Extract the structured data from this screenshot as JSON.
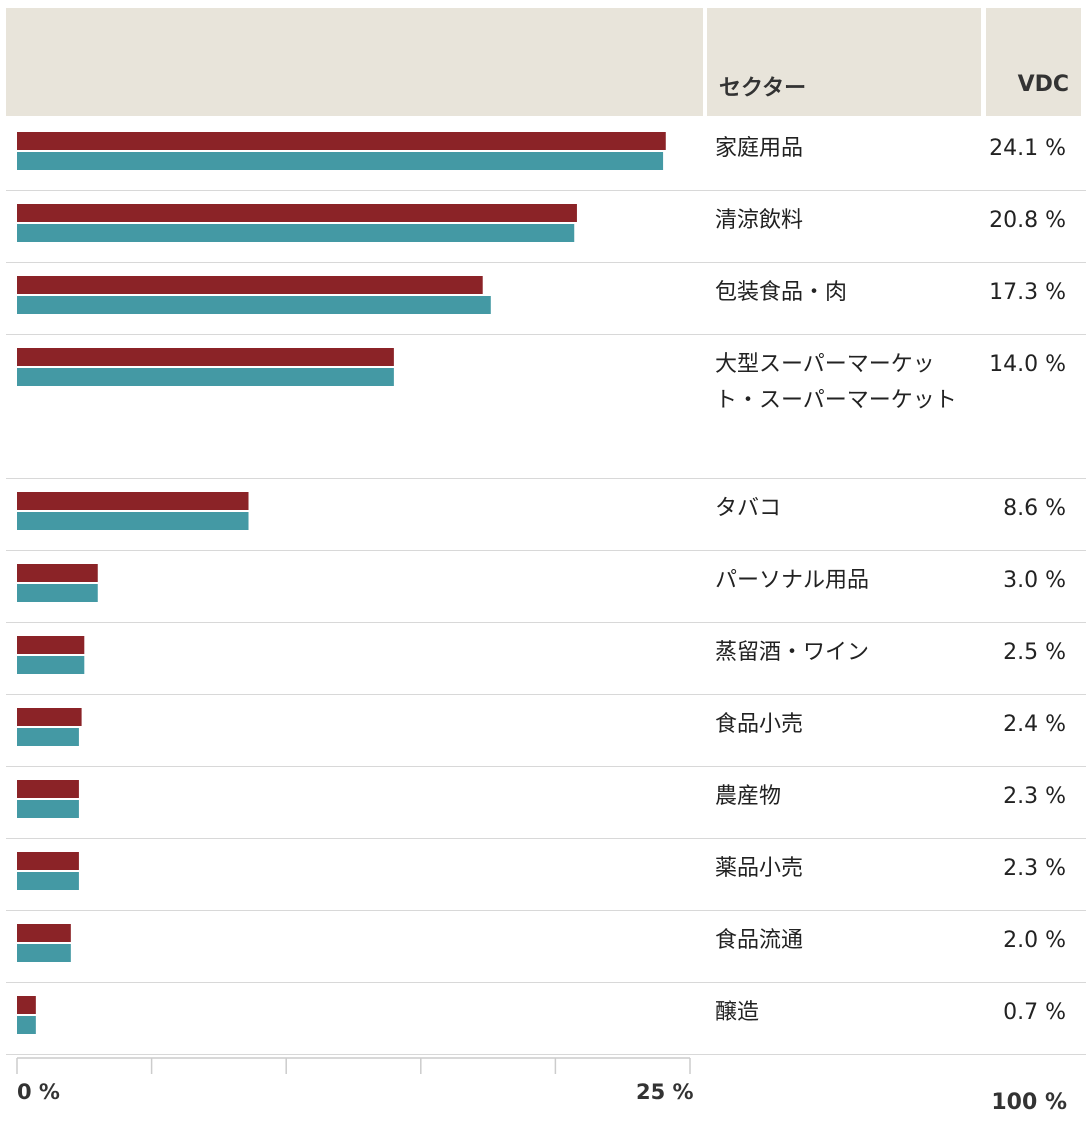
{
  "table": {
    "header": {
      "sector": "セクター",
      "vdc": "VDC"
    },
    "rows": [
      {
        "sector": "家庭用品",
        "pct": "24.1 %"
      },
      {
        "sector": "清涼飲料",
        "pct": "20.8 %"
      },
      {
        "sector": "包装食品・肉",
        "pct": "17.3 %"
      },
      {
        "sector": "大型スーパーマーケット・スーパーマーケット",
        "pct": "14.0 %"
      },
      {
        "sector": "タバコ",
        "pct": "8.6 %"
      },
      {
        "sector": "パーソナル用品",
        "pct": "3.0 %"
      },
      {
        "sector": "蒸留酒・ワイン",
        "pct": "2.5 %"
      },
      {
        "sector": "食品小売",
        "pct": "2.4 %"
      },
      {
        "sector": "農産物",
        "pct": "2.3 %"
      },
      {
        "sector": "薬品小売",
        "pct": "2.3 %"
      },
      {
        "sector": "食品流通",
        "pct": "2.0 %"
      },
      {
        "sector": "醸造",
        "pct": "0.7 %"
      }
    ],
    "total": "100 %"
  },
  "chart_data": {
    "type": "bar",
    "orientation": "horizontal",
    "categories": [
      "家庭用品",
      "清涼飲料",
      "包装食品・肉",
      "大型スーパーマーケット・スーパーマーケット",
      "タバコ",
      "パーソナル用品",
      "蒸留酒・ワイン",
      "食品小売",
      "農産物",
      "薬品小売",
      "食品流通",
      "醸造"
    ],
    "series": [
      {
        "values": [
          24.1,
          20.8,
          17.3,
          14.0,
          8.6,
          3.0,
          2.5,
          2.4,
          2.3,
          2.3,
          2.0,
          0.7
        ]
      },
      {
        "values": [
          24.0,
          20.7,
          17.6,
          14.0,
          8.6,
          3.0,
          2.5,
          2.3,
          2.3,
          2.3,
          2.0,
          0.7
        ]
      }
    ],
    "xlim": [
      0,
      25
    ],
    "xticks": [
      "0 %",
      "25 %"
    ],
    "grid": false,
    "colors": [
      "#8b2327",
      "#4499a4"
    ]
  }
}
